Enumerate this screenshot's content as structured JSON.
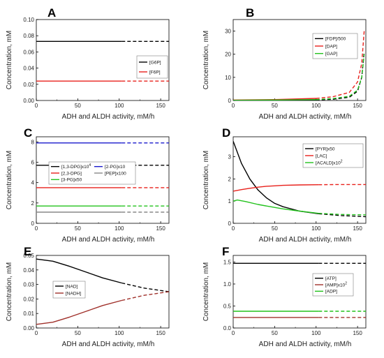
{
  "chart_data": [
    {
      "type": "line",
      "panel_label": "A",
      "xlabel": "ADH and ALDH activity,   mM/h",
      "ylabel": "Concentration,  mM",
      "xlim": [
        0,
        160
      ],
      "ylim": [
        0,
        0.1
      ],
      "x_ticks": [
        "0",
        "50",
        "100",
        "150"
      ],
      "y_ticks": [
        "0.00",
        "0.02",
        "0.04",
        "0.06",
        "0.08",
        "0.10"
      ],
      "solid_until": 103,
      "legend_position": "right",
      "series": [
        {
          "name": "[G6P]",
          "color": "#000000",
          "x": [
            0,
            50,
            103,
            160
          ],
          "y": [
            0.073,
            0.073,
            0.073,
            0.073
          ]
        },
        {
          "name": "[F6P]",
          "color": "#e8201b",
          "x": [
            0,
            50,
            103,
            160
          ],
          "y": [
            0.024,
            0.024,
            0.024,
            0.024
          ]
        }
      ]
    },
    {
      "type": "line",
      "panel_label": "B",
      "xlabel": "ADH and ALDH activity,   mM/h",
      "ylabel": "Concentration,  mM",
      "xlim": [
        0,
        160
      ],
      "ylim": [
        0,
        35
      ],
      "x_ticks": [
        "0",
        "50",
        "100",
        "150"
      ],
      "y_ticks": [
        "0",
        "10",
        "20",
        "30"
      ],
      "solid_until": 103,
      "legend_position": "top-right",
      "series": [
        {
          "name": "[FDP]/500",
          "color": "#000000",
          "x": [
            0,
            50,
            100,
            120,
            140,
            150,
            155,
            158
          ],
          "y": [
            0.05,
            0.1,
            0.25,
            0.5,
            1.4,
            4,
            10,
            21
          ]
        },
        {
          "name": "[DAP]",
          "color": "#e8201b",
          "x": [
            0,
            50,
            100,
            120,
            140,
            150,
            155,
            158
          ],
          "y": [
            0.2,
            0.4,
            0.9,
            1.6,
            3.5,
            8,
            16,
            30
          ]
        },
        {
          "name": "[GAP]",
          "color": "#22c21c",
          "x": [
            0,
            50,
            100,
            120,
            140,
            150,
            155,
            158
          ],
          "y": [
            0.1,
            0.2,
            0.4,
            0.8,
            1.8,
            4.5,
            10,
            20
          ]
        }
      ]
    },
    {
      "type": "line",
      "panel_label": "C",
      "xlabel": "ADH and ALDH activity,   mM/h",
      "ylabel": "Concentration,  mM",
      "xlim": [
        0,
        160
      ],
      "ylim": [
        0,
        8.5
      ],
      "x_ticks": [
        "0",
        "50",
        "100",
        "150"
      ],
      "y_ticks": [
        "0",
        "2",
        "4",
        "6",
        "8"
      ],
      "solid_until": 103,
      "legend_position": "center",
      "series": [
        {
          "name": "[1,3-DPG]x10",
          "name_sup": "4",
          "color": "#000000",
          "x": [
            0,
            103,
            160
          ],
          "y": [
            5.7,
            5.7,
            5.7
          ]
        },
        {
          "name": "[2,3-DPG]",
          "color": "#e8201b",
          "x": [
            0,
            103,
            160
          ],
          "y": [
            3.5,
            3.5,
            3.5
          ]
        },
        {
          "name": "[3-PG]x50",
          "color": "#22c21c",
          "x": [
            0,
            103,
            160
          ],
          "y": [
            1.7,
            1.7,
            1.7
          ]
        },
        {
          "name": "[2-PG]x10",
          "color": "#1a1acc",
          "x": [
            0,
            103,
            160
          ],
          "y": [
            7.9,
            7.9,
            7.9
          ]
        },
        {
          "name": "[PEP]x100",
          "color": "#888888",
          "x": [
            0,
            103,
            160
          ],
          "y": [
            1.1,
            1.1,
            1.1
          ]
        }
      ]
    },
    {
      "type": "line",
      "panel_label": "D",
      "xlabel": "ADH and ALDH activity,   mM/h",
      "ylabel": "Concentration,  mM",
      "xlim": [
        0,
        160
      ],
      "ylim": [
        0,
        3.9
      ],
      "x_ticks": [
        "0",
        "50",
        "100",
        "150"
      ],
      "y_ticks": [
        "0",
        "1",
        "2",
        "3"
      ],
      "solid_until": 103,
      "legend_position": "top-right",
      "series": [
        {
          "name": "[PYR]x50",
          "color": "#000000",
          "x": [
            0,
            10,
            20,
            30,
            40,
            50,
            60,
            80,
            103,
            130,
            160
          ],
          "y": [
            3.7,
            2.7,
            2.0,
            1.5,
            1.15,
            0.9,
            0.75,
            0.55,
            0.43,
            0.35,
            0.3
          ]
        },
        {
          "name": "[LAC]",
          "color": "#e8201b",
          "x": [
            0,
            10,
            20,
            30,
            40,
            50,
            60,
            80,
            103,
            130,
            160
          ],
          "y": [
            1.45,
            1.52,
            1.58,
            1.63,
            1.67,
            1.69,
            1.71,
            1.73,
            1.74,
            1.75,
            1.75
          ]
        },
        {
          "name": "[ACALD]x10",
          "name_sup": "2",
          "color": "#22c21c",
          "x": [
            0,
            5,
            15,
            30,
            45,
            60,
            80,
            103,
            130,
            160
          ],
          "y": [
            1.0,
            1.05,
            0.98,
            0.85,
            0.75,
            0.65,
            0.55,
            0.45,
            0.4,
            0.38
          ]
        }
      ]
    },
    {
      "type": "line",
      "panel_label": "E",
      "xlabel": "ADH and ALDH activity,   mM/h",
      "ylabel": "Concentration,  mM",
      "xlim": [
        0,
        160
      ],
      "ylim": [
        0,
        0.05
      ],
      "x_ticks": [
        "0",
        "50",
        "100",
        "150"
      ],
      "y_ticks": [
        "0.00",
        "0.01",
        "0.02",
        "0.03",
        "0.04",
        "0.05"
      ],
      "solid_until": 103,
      "legend_position": "center-left",
      "series": [
        {
          "name": "[NAD]",
          "color": "#000000",
          "x": [
            0,
            20,
            40,
            60,
            80,
            103,
            130,
            160
          ],
          "y": [
            0.0475,
            0.046,
            0.0425,
            0.0385,
            0.0345,
            0.031,
            0.0275,
            0.025
          ]
        },
        {
          "name": "[NADH]",
          "color": "#a0302a",
          "x": [
            0,
            20,
            40,
            60,
            80,
            103,
            130,
            160
          ],
          "y": [
            0.0025,
            0.004,
            0.0075,
            0.0115,
            0.0155,
            0.019,
            0.0225,
            0.025
          ]
        }
      ]
    },
    {
      "type": "line",
      "panel_label": "F",
      "xlabel": "ADH and ALDH activity,   mM/h",
      "ylabel": "Concentration,  mM",
      "xlim": [
        0,
        160
      ],
      "ylim": [
        0,
        1.65
      ],
      "x_ticks": [
        "0",
        "50",
        "100",
        "150"
      ],
      "y_ticks": [
        "0.0",
        "0.5",
        "1.0",
        "1.5"
      ],
      "solid_until": 103,
      "legend_position": "center-right",
      "series": [
        {
          "name": "[ATP]",
          "color": "#000000",
          "x": [
            0,
            103,
            160
          ],
          "y": [
            1.47,
            1.47,
            1.47
          ]
        },
        {
          "name": "[AMP]x10",
          "name_sup": "2",
          "color": "#a0302a",
          "x": [
            0,
            103,
            160
          ],
          "y": [
            0.24,
            0.24,
            0.24
          ]
        },
        {
          "name": "[ADP]",
          "color": "#22c21c",
          "x": [
            0,
            103,
            160
          ],
          "y": [
            0.38,
            0.38,
            0.38
          ]
        }
      ]
    }
  ]
}
